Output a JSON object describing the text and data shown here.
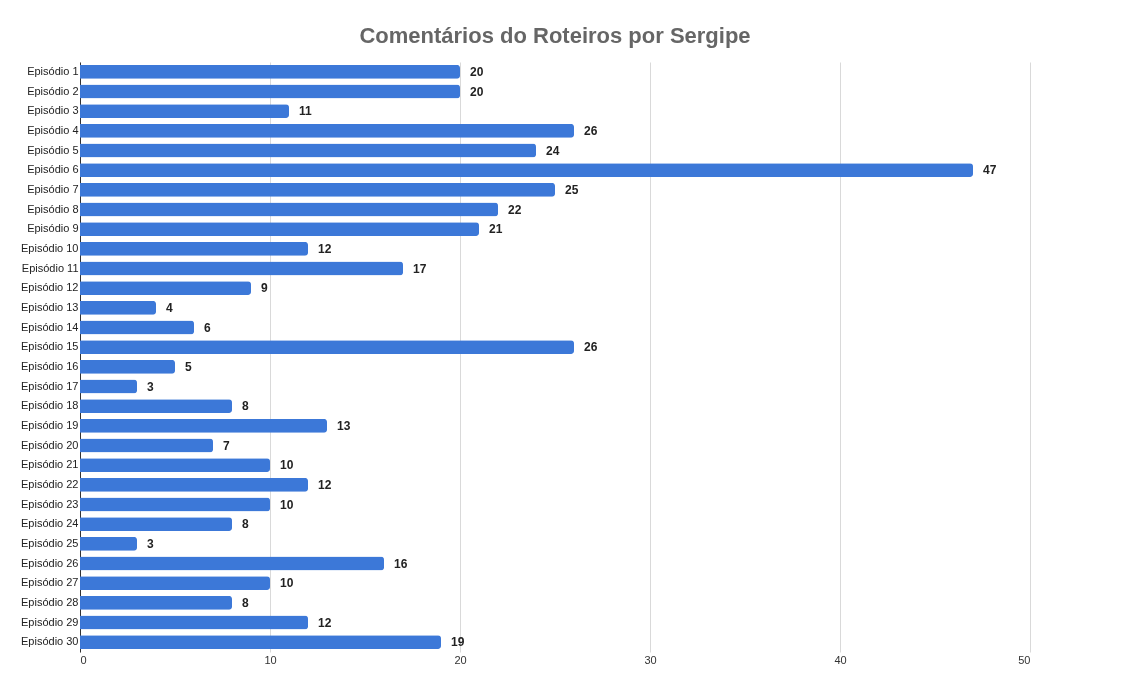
{
  "chart_data": {
    "type": "bar",
    "orientation": "horizontal",
    "title": "Comentários do Roteiros por Sergipe",
    "categories": [
      "Episódio 1",
      "Episódio 2",
      "Episódio 3",
      "Episódio 4",
      "Episódio 5",
      "Episódio 6",
      "Episódio 7",
      "Episódio 8",
      "Episódio 9",
      "Episódio 10",
      "Episódio 11",
      "Episódio 12",
      "Episódio 13",
      "Episódio 14",
      "Episódio 15",
      "Episódio 16",
      "Episódio 17",
      "Episódio 18",
      "Episódio 19",
      "Episódio 20",
      "Episódio 21",
      "Episódio 22",
      "Episódio 23",
      "Episódio 24",
      "Episódio 25",
      "Episódio 26",
      "Episódio 27",
      "Episódio 28",
      "Episódio 29",
      "Episódio 30"
    ],
    "values": [
      20,
      20,
      11,
      26,
      24,
      47,
      25,
      22,
      21,
      12,
      17,
      9,
      4,
      6,
      26,
      5,
      3,
      8,
      13,
      7,
      10,
      12,
      10,
      8,
      3,
      16,
      10,
      8,
      12,
      19
    ],
    "color": "#3c78d8",
    "xlim": [
      0,
      50
    ],
    "xticks": [
      0,
      10,
      20,
      30,
      40,
      50
    ],
    "grid": "x",
    "data_labels": true
  }
}
